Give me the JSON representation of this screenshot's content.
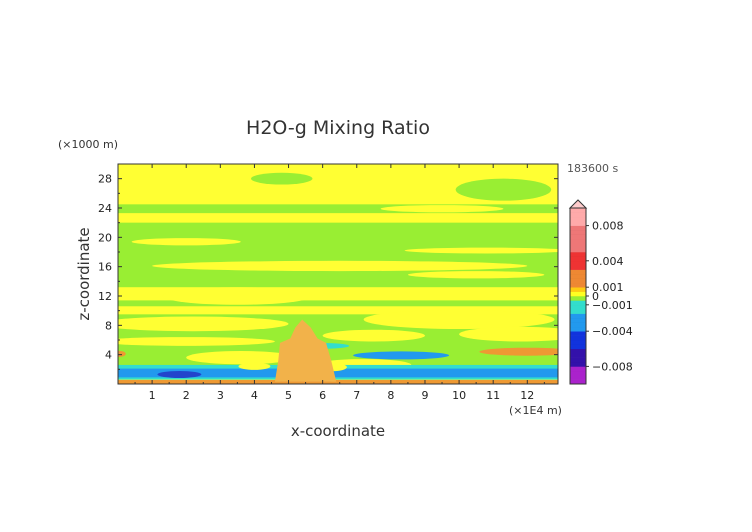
{
  "chart_data": {
    "type": "heatmap",
    "title": "H2O-g Mixing Ratio",
    "xlabel": "x-coordinate",
    "ylabel": "z-coordinate",
    "x_unit": "(×1E4 m)",
    "y_unit": "(×1000 m)",
    "time_label": "183600 s",
    "xlim": [
      0,
      12.9
    ],
    "ylim": [
      0,
      30
    ],
    "x_ticks": [
      1,
      2,
      3,
      4,
      5,
      6,
      7,
      8,
      9,
      10,
      11,
      12
    ],
    "y_ticks": [
      4,
      8,
      12,
      16,
      20,
      24,
      28
    ],
    "colorbar": {
      "range": [
        -0.01,
        0.01
      ],
      "tick_labels": [
        {
          "value": 0.008,
          "label": "0.008"
        },
        {
          "value": 0.004,
          "label": "0.004"
        },
        {
          "value": 0.001,
          "label": "0.001"
        },
        {
          "value": 0,
          "label": "0"
        },
        {
          "value": -0.001,
          "label": "−0.001"
        },
        {
          "value": -0.004,
          "label": "−0.004"
        },
        {
          "value": -0.008,
          "label": "−0.008"
        }
      ],
      "color_stops": [
        {
          "value": -0.01,
          "color": "#ff33cc"
        },
        {
          "value": -0.008,
          "color": "#aa22cc"
        },
        {
          "value": -0.006,
          "color": "#3311aa"
        },
        {
          "value": -0.004,
          "color": "#1133dd"
        },
        {
          "value": -0.002,
          "color": "#2299ee"
        },
        {
          "value": -0.0005,
          "color": "#33ddcc"
        },
        {
          "value": 0,
          "color": "#99ee33"
        },
        {
          "value": 0.0005,
          "color": "#ffff22"
        },
        {
          "value": 0.001,
          "color": "#ffcc11"
        },
        {
          "value": 0.003,
          "color": "#ee8833"
        },
        {
          "value": 0.005,
          "color": "#ee3333"
        },
        {
          "value": 0.008,
          "color": "#ee7777"
        },
        {
          "value": 0.01,
          "color": "#ffaaaa"
        }
      ]
    },
    "field_colors": {
      "yellow": "#ffff33",
      "green": "#99ee33",
      "cyan": "#33ddcc",
      "blue": "#2299ee",
      "dark_blue": "#2244cc",
      "orange": "#ee9933",
      "red_orange": "#e8773a"
    }
  }
}
